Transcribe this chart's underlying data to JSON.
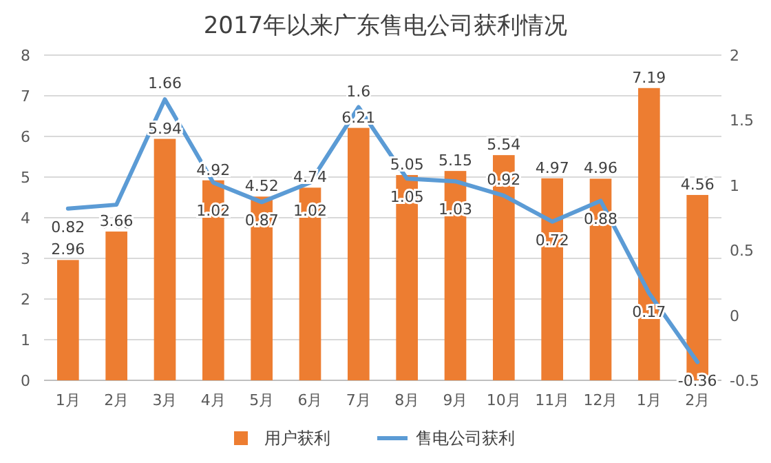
{
  "chart_data": {
    "type": "bar",
    "title": "2017年以来广东售电公司获利情况",
    "categories": [
      "1月",
      "2月",
      "3月",
      "4月",
      "5月",
      "6月",
      "7月",
      "8月",
      "9月",
      "10月",
      "11月",
      "12月",
      "1月",
      "2月"
    ],
    "series": [
      {
        "name": "用户获利",
        "color": "#ed7d31",
        "values": [
          2.96,
          3.66,
          5.94,
          4.92,
          4.52,
          4.74,
          6.21,
          5.05,
          5.15,
          5.54,
          4.97,
          4.96,
          7.19,
          4.56
        ]
      },
      {
        "name": "售电公司获利",
        "type": "line",
        "axis": "y2",
        "color": "#5b9bd5",
        "values": [
          0.82,
          0.85,
          1.66,
          1.02,
          0.87,
          1.02,
          1.6,
          1.05,
          1.03,
          0.92,
          0.72,
          0.88,
          0.17,
          -0.36
        ]
      }
    ],
    "ylim": [
      0,
      8
    ],
    "yticks": [
      0,
      1,
      2,
      3,
      4,
      5,
      6,
      7,
      8
    ],
    "y2lim": [
      -0.5,
      2
    ],
    "y2ticks": [
      -0.5,
      0,
      0.5,
      1,
      1.5,
      2
    ],
    "grid": "y",
    "legend": "bottom",
    "data_labels": true,
    "marker": "none",
    "line_style": "solid"
  }
}
